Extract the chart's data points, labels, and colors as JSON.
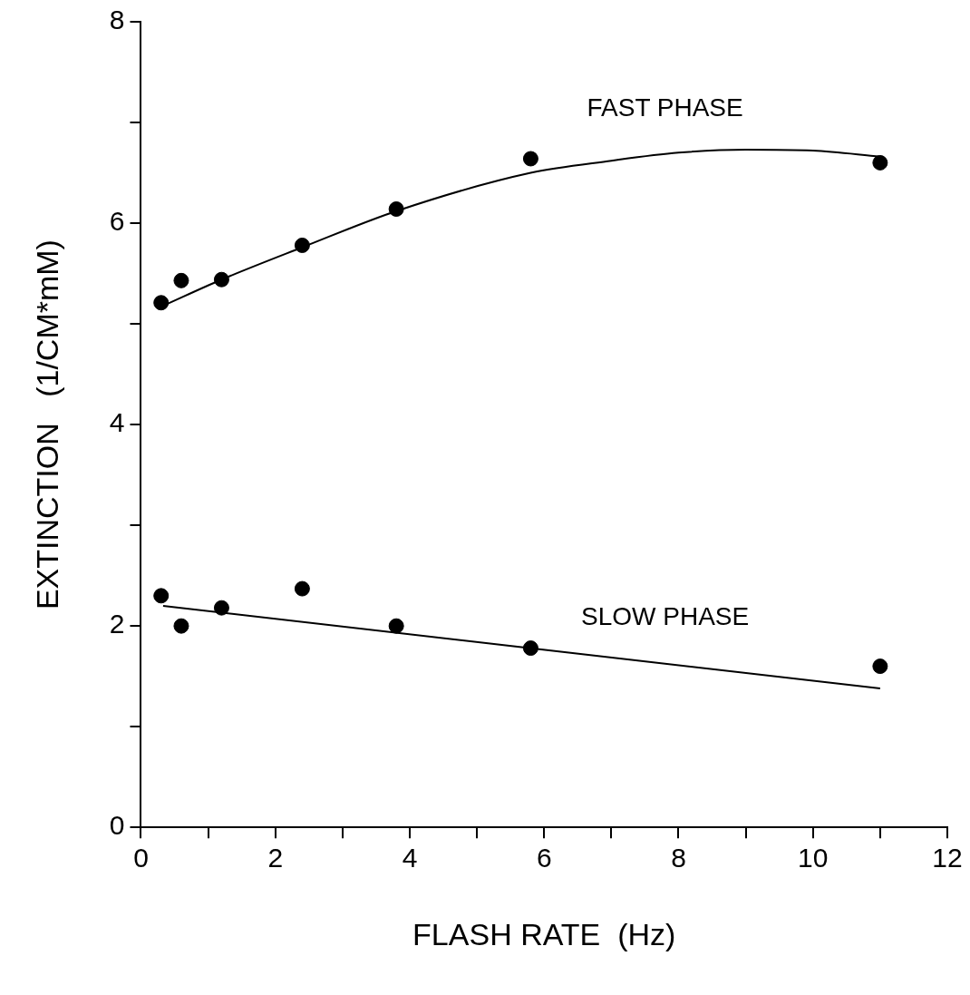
{
  "chart_data": {
    "type": "scatter",
    "xlabel": "FLASH RATE  (Hz)",
    "ylabel": "EXTINCTION   (1/CM*mM)",
    "series": [
      {
        "color": "#000000",
        "marker": "circle",
        "x": [
          0.3,
          0.6,
          1.2,
          2.4,
          3.8,
          5.8,
          11.0
        ],
        "values": [
          5.21,
          5.43,
          5.44,
          5.78,
          6.14,
          6.64,
          6.6
        ]
      },
      {
        "type": "line",
        "name": "FAST PHASE",
        "color": "#000000",
        "marker": "none",
        "line_style": "solid",
        "x": [
          0.33,
          1.2,
          2.4,
          3.8,
          5.8,
          7,
          8,
          9,
          10,
          11.0
        ],
        "values": [
          5.18,
          5.44,
          5.76,
          6.12,
          6.5,
          6.62,
          6.7,
          6.73,
          6.72,
          6.66
        ]
      },
      {
        "color": "#000000",
        "marker": "circle",
        "x": [
          0.3,
          0.6,
          1.2,
          2.4,
          3.8,
          5.8,
          11.0
        ],
        "values": [
          2.3,
          2.0,
          2.18,
          2.37,
          2.0,
          1.78,
          1.6
        ]
      },
      {
        "type": "line",
        "name": "SLOW PHASE",
        "color": "#000000",
        "marker": "none",
        "line_style": "solid",
        "x": [
          0.33,
          11.0
        ],
        "values": [
          2.2,
          1.38
        ]
      }
    ],
    "xlim": [
      0,
      12
    ],
    "xticks": [
      0,
      {
        "value": 1,
        "label": null
      },
      2,
      {
        "value": 3,
        "label": null
      },
      4,
      {
        "value": 5,
        "label": null
      },
      6,
      {
        "value": 7,
        "label": null
      },
      8,
      {
        "value": 9,
        "label": null
      },
      10,
      {
        "value": 11,
        "label": null
      },
      12
    ],
    "ylim": [
      0,
      8
    ],
    "yticks": [
      0,
      {
        "value": 1,
        "label": null
      },
      2,
      {
        "value": 3,
        "label": null
      },
      4,
      {
        "value": 5,
        "label": null
      },
      6,
      {
        "value": 7,
        "label": null
      },
      8
    ],
    "grid": false,
    "legend": false
  }
}
